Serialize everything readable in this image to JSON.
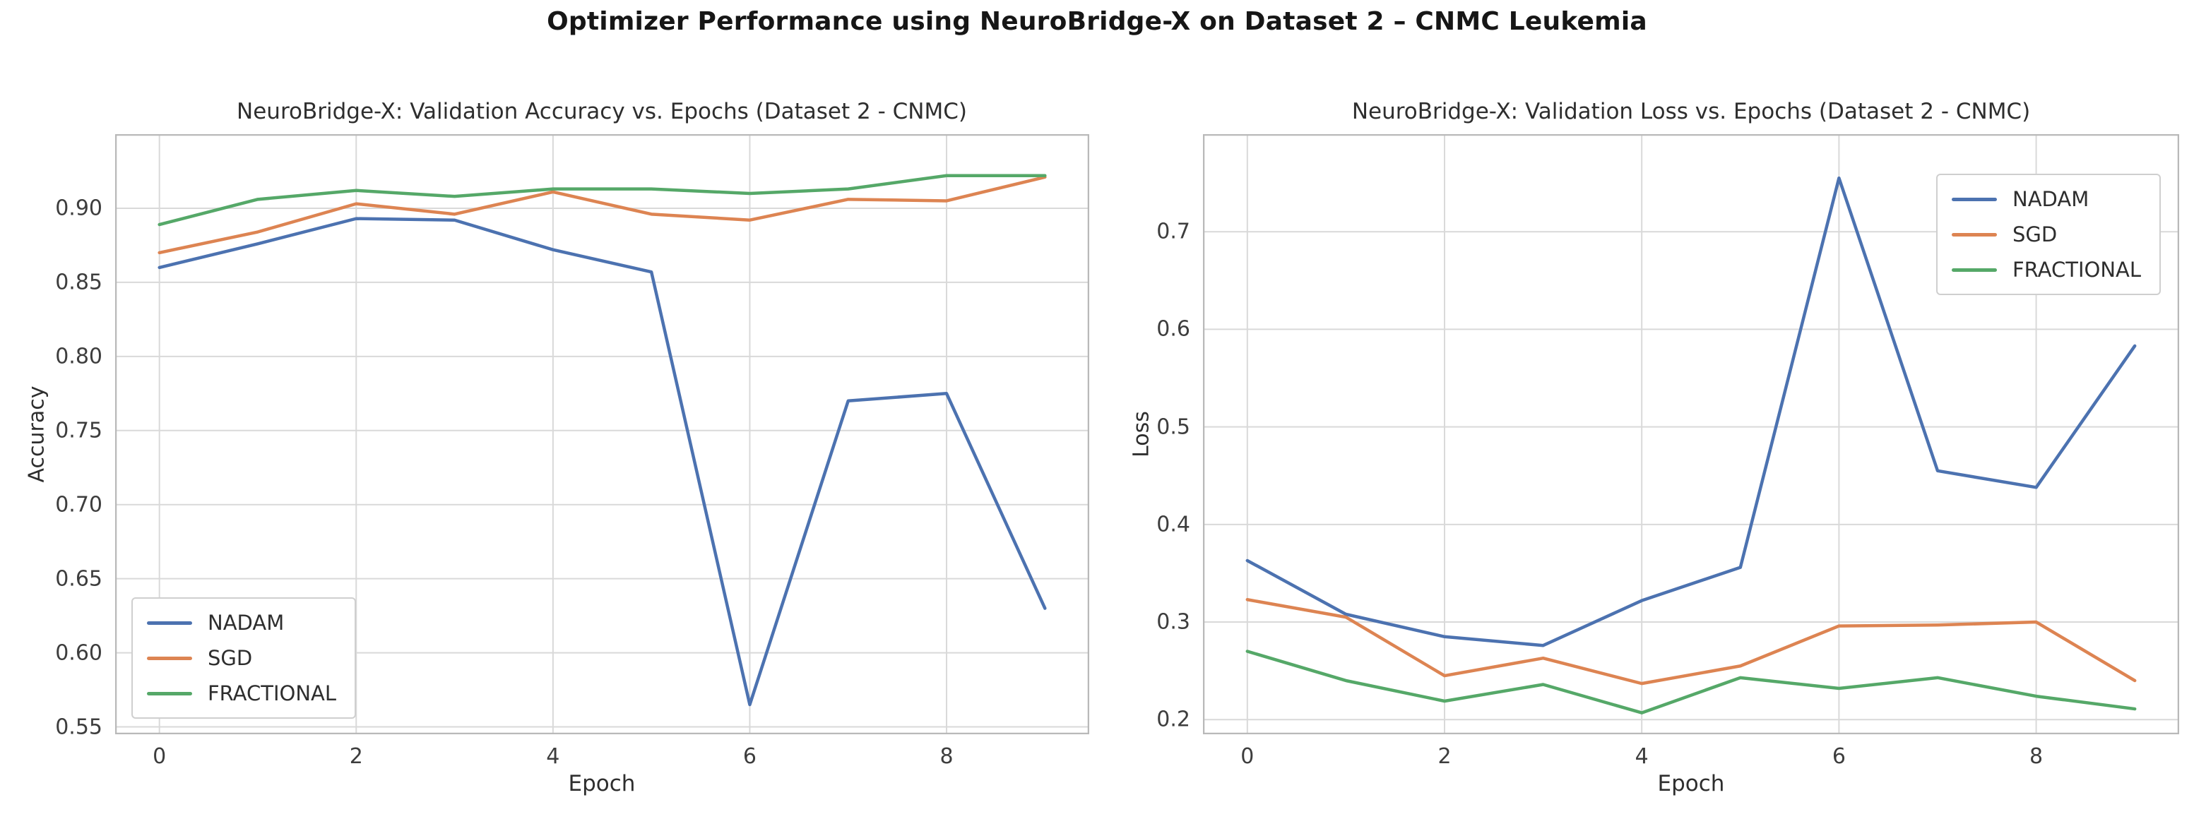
{
  "page": {
    "title": "Optimizer Performance using NeuroBridge-X on Dataset 2 – CNMC Leukemia"
  },
  "colors": {
    "nadam": "#4C72B0",
    "sgd": "#DD8452",
    "fractional": "#55A868",
    "gridline": "#D9D9D9",
    "spine": "#B9B9B9",
    "background": "#FFFFFF"
  },
  "chart_data": [
    {
      "id": "accuracy",
      "type": "line",
      "title": "NeuroBridge-X: Validation Accuracy vs. Epochs (Dataset 2 - CNMC)",
      "xlabel": "Epoch",
      "ylabel": "Accuracy",
      "grid": true,
      "legend_position": "lower-left",
      "x": [
        0,
        1,
        2,
        3,
        4,
        5,
        6,
        7,
        8,
        9
      ],
      "xlim": [
        -0.45,
        9.45
      ],
      "ylim": [
        0.545,
        0.95
      ],
      "xticks": [
        0,
        2,
        4,
        6,
        8
      ],
      "xtick_labels": [
        "0",
        "2",
        "4",
        "6",
        "8"
      ],
      "yticks": [
        0.55,
        0.6,
        0.65,
        0.7,
        0.75,
        0.8,
        0.85,
        0.9
      ],
      "ytick_labels": [
        "0.55",
        "0.60",
        "0.65",
        "0.70",
        "0.75",
        "0.80",
        "0.85",
        "0.90"
      ],
      "series": [
        {
          "name": "NADAM",
          "color": "#4C72B0",
          "values": [
            0.86,
            0.876,
            0.893,
            0.892,
            0.872,
            0.857,
            0.565,
            0.77,
            0.775,
            0.63
          ]
        },
        {
          "name": "SGD",
          "color": "#DD8452",
          "values": [
            0.87,
            0.884,
            0.903,
            0.896,
            0.911,
            0.896,
            0.892,
            0.906,
            0.905,
            0.921
          ]
        },
        {
          "name": "FRACTIONAL",
          "color": "#55A868",
          "values": [
            0.889,
            0.906,
            0.912,
            0.908,
            0.913,
            0.913,
            0.91,
            0.913,
            0.922,
            0.922
          ]
        }
      ]
    },
    {
      "id": "loss",
      "type": "line",
      "title": "NeuroBridge-X: Validation Loss vs. Epochs (Dataset 2 - CNMC)",
      "xlabel": "Epoch",
      "ylabel": "Loss",
      "grid": true,
      "legend_position": "upper-right",
      "x": [
        0,
        1,
        2,
        3,
        4,
        5,
        6,
        7,
        8,
        9
      ],
      "xlim": [
        -0.45,
        9.45
      ],
      "ylim": [
        0.185,
        0.8
      ],
      "xticks": [
        0,
        2,
        4,
        6,
        8
      ],
      "xtick_labels": [
        "0",
        "2",
        "4",
        "6",
        "8"
      ],
      "yticks": [
        0.2,
        0.3,
        0.4,
        0.5,
        0.6,
        0.7
      ],
      "ytick_labels": [
        "0.2",
        "0.3",
        "0.4",
        "0.5",
        "0.6",
        "0.7"
      ],
      "series": [
        {
          "name": "NADAM",
          "color": "#4C72B0",
          "values": [
            0.363,
            0.308,
            0.285,
            0.276,
            0.322,
            0.356,
            0.755,
            0.455,
            0.438,
            0.583
          ]
        },
        {
          "name": "SGD",
          "color": "#DD8452",
          "values": [
            0.323,
            0.305,
            0.245,
            0.263,
            0.237,
            0.255,
            0.296,
            0.297,
            0.3,
            0.24
          ]
        },
        {
          "name": "FRACTIONAL",
          "color": "#55A868",
          "values": [
            0.27,
            0.24,
            0.219,
            0.236,
            0.207,
            0.243,
            0.232,
            0.243,
            0.224,
            0.211
          ]
        }
      ]
    }
  ]
}
